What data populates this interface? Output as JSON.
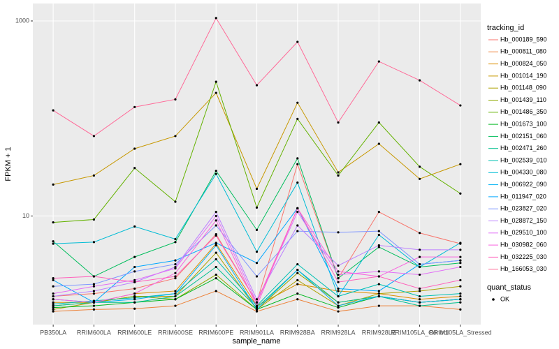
{
  "chart_data": {
    "type": "line",
    "x_label": "sample_name",
    "y_label": "FPKM + 1",
    "legend_title": "tracking_id",
    "shape_legend_title": "quant_status",
    "shape_legend_entries": [
      "OK"
    ],
    "log_y": true,
    "grid": true,
    "legend_position": "right",
    "categories": [
      "PB350LA",
      "RRIM600LA",
      "RRIM600LE",
      "RRIM600SE",
      "RRIM600PE",
      "RRIM901LA",
      "RRIM928BA",
      "RRIM928LA",
      "RRIM928LE",
      "RRIM105LA_Control",
      "RRIM105LA_Stressed"
    ],
    "ylim": [
      0.77,
      1510
    ],
    "yticks": [
      10,
      1000
    ],
    "series": [
      {
        "name": "Hb_000189_590",
        "color": "#F8766D",
        "values": [
          1.5,
          1.6,
          1.8,
          2.3,
          6.5,
          1.3,
          34,
          2.3,
          11,
          6.7,
          5.2
        ]
      },
      {
        "name": "Hb_000811_080",
        "color": "#EC8239",
        "values": [
          1.05,
          1.1,
          1.12,
          1.2,
          1.7,
          1.05,
          1.4,
          1.05,
          1.2,
          1.2,
          1.1
        ]
      },
      {
        "name": "Hb_000824_050",
        "color": "#DB8E00",
        "values": [
          1.3,
          1.3,
          1.6,
          1.7,
          5.2,
          1.2,
          2.0,
          1.7,
          1.6,
          1.4,
          1.5
        ]
      },
      {
        "name": "Hb_001014_190",
        "color": "#C79800",
        "values": [
          21,
          26,
          49,
          66,
          183,
          19,
          145,
          28,
          55,
          24,
          34
        ]
      },
      {
        "name": "Hb_001148_090",
        "color": "#AEA200",
        "values": [
          1.1,
          1.3,
          1.5,
          1.5,
          4.2,
          1.1,
          2.2,
          1.2,
          1.6,
          1.7,
          1.9
        ]
      },
      {
        "name": "Hb_001439_110",
        "color": "#8FAA00",
        "values": [
          1.2,
          1.3,
          1.5,
          1.4,
          2.5,
          1.1,
          2.6,
          1.3,
          1.5,
          1.3,
          1.4
        ]
      },
      {
        "name": "Hb_001486_350",
        "color": "#64B200",
        "values": [
          8.6,
          9.2,
          31,
          14,
          238,
          12.2,
          99,
          26,
          91,
          32,
          17
        ]
      },
      {
        "name": "Hb_001673_100",
        "color": "#00B81F",
        "values": [
          1.15,
          1.2,
          1.3,
          1.4,
          2.3,
          1.1,
          1.6,
          1.15,
          1.5,
          1.3,
          1.4
        ]
      },
      {
        "name": "Hb_002151_060",
        "color": "#00BD5C",
        "values": [
          5.5,
          2.4,
          3.8,
          5.4,
          29,
          7.2,
          39,
          2.3,
          4.8,
          3.0,
          3.3
        ]
      },
      {
        "name": "Hb_002471_260",
        "color": "#00C08E",
        "values": [
          1.2,
          1.3,
          1.3,
          1.5,
          3.0,
          1.15,
          2.8,
          1.3,
          1.5,
          1.2,
          1.3
        ]
      },
      {
        "name": "Hb_002539_010",
        "color": "#00C1B2",
        "values": [
          1.25,
          1.35,
          1.45,
          1.6,
          3.6,
          1.2,
          3.2,
          1.5,
          2.0,
          1.5,
          1.6
        ]
      },
      {
        "name": "Hb_004330_080",
        "color": "#00BCD5",
        "values": [
          5.2,
          5.4,
          7.8,
          5.8,
          27,
          4.3,
          22,
          1.5,
          6.4,
          3.0,
          5.3
        ]
      },
      {
        "name": "Hb_006922_090",
        "color": "#00B2F3",
        "values": [
          1.4,
          1.3,
          1.4,
          1.6,
          5.0,
          1.1,
          2.8,
          1.2,
          1.5,
          1.3,
          1.4
        ]
      },
      {
        "name": "Hb_011947_020",
        "color": "#00A6FF",
        "values": [
          2.2,
          1.3,
          3.0,
          3.5,
          5.3,
          3.3,
          12,
          1.8,
          1.7,
          3.2,
          3.5
        ]
      },
      {
        "name": "Hb_023827_020",
        "color": "#7F96FF",
        "values": [
          1.9,
          2.0,
          2.7,
          3.2,
          8,
          2.4,
          7,
          6.8,
          7,
          3.2,
          3.5
        ]
      },
      {
        "name": "Hb_028872_150",
        "color": "#BC81FF",
        "values": [
          1.5,
          1.7,
          2.1,
          3.0,
          11,
          1.4,
          8,
          3.1,
          5,
          4.5,
          4.5
        ]
      },
      {
        "name": "Hb_029510_100",
        "color": "#E26EF7",
        "values": [
          1.6,
          1.9,
          2.2,
          2.9,
          10,
          1.3,
          11,
          2.5,
          2.7,
          2.5,
          3.0
        ]
      },
      {
        "name": "Hb_030982_060",
        "color": "#F863DF",
        "values": [
          1.4,
          1.3,
          1.6,
          2.6,
          9,
          1.2,
          12,
          2.7,
          2.4,
          3.8,
          3.8
        ]
      },
      {
        "name": "Hb_032225_030",
        "color": "#FF62BC",
        "values": [
          2.3,
          2.4,
          2.1,
          2.4,
          6.3,
          1.3,
          12,
          2.1,
          2.4,
          1.8,
          2.2
        ]
      },
      {
        "name": "Hb_166053_030",
        "color": "#FF6A98",
        "values": [
          121,
          66,
          131,
          157,
          1070,
          219,
          610,
          91,
          384,
          246,
          136
        ]
      }
    ]
  }
}
